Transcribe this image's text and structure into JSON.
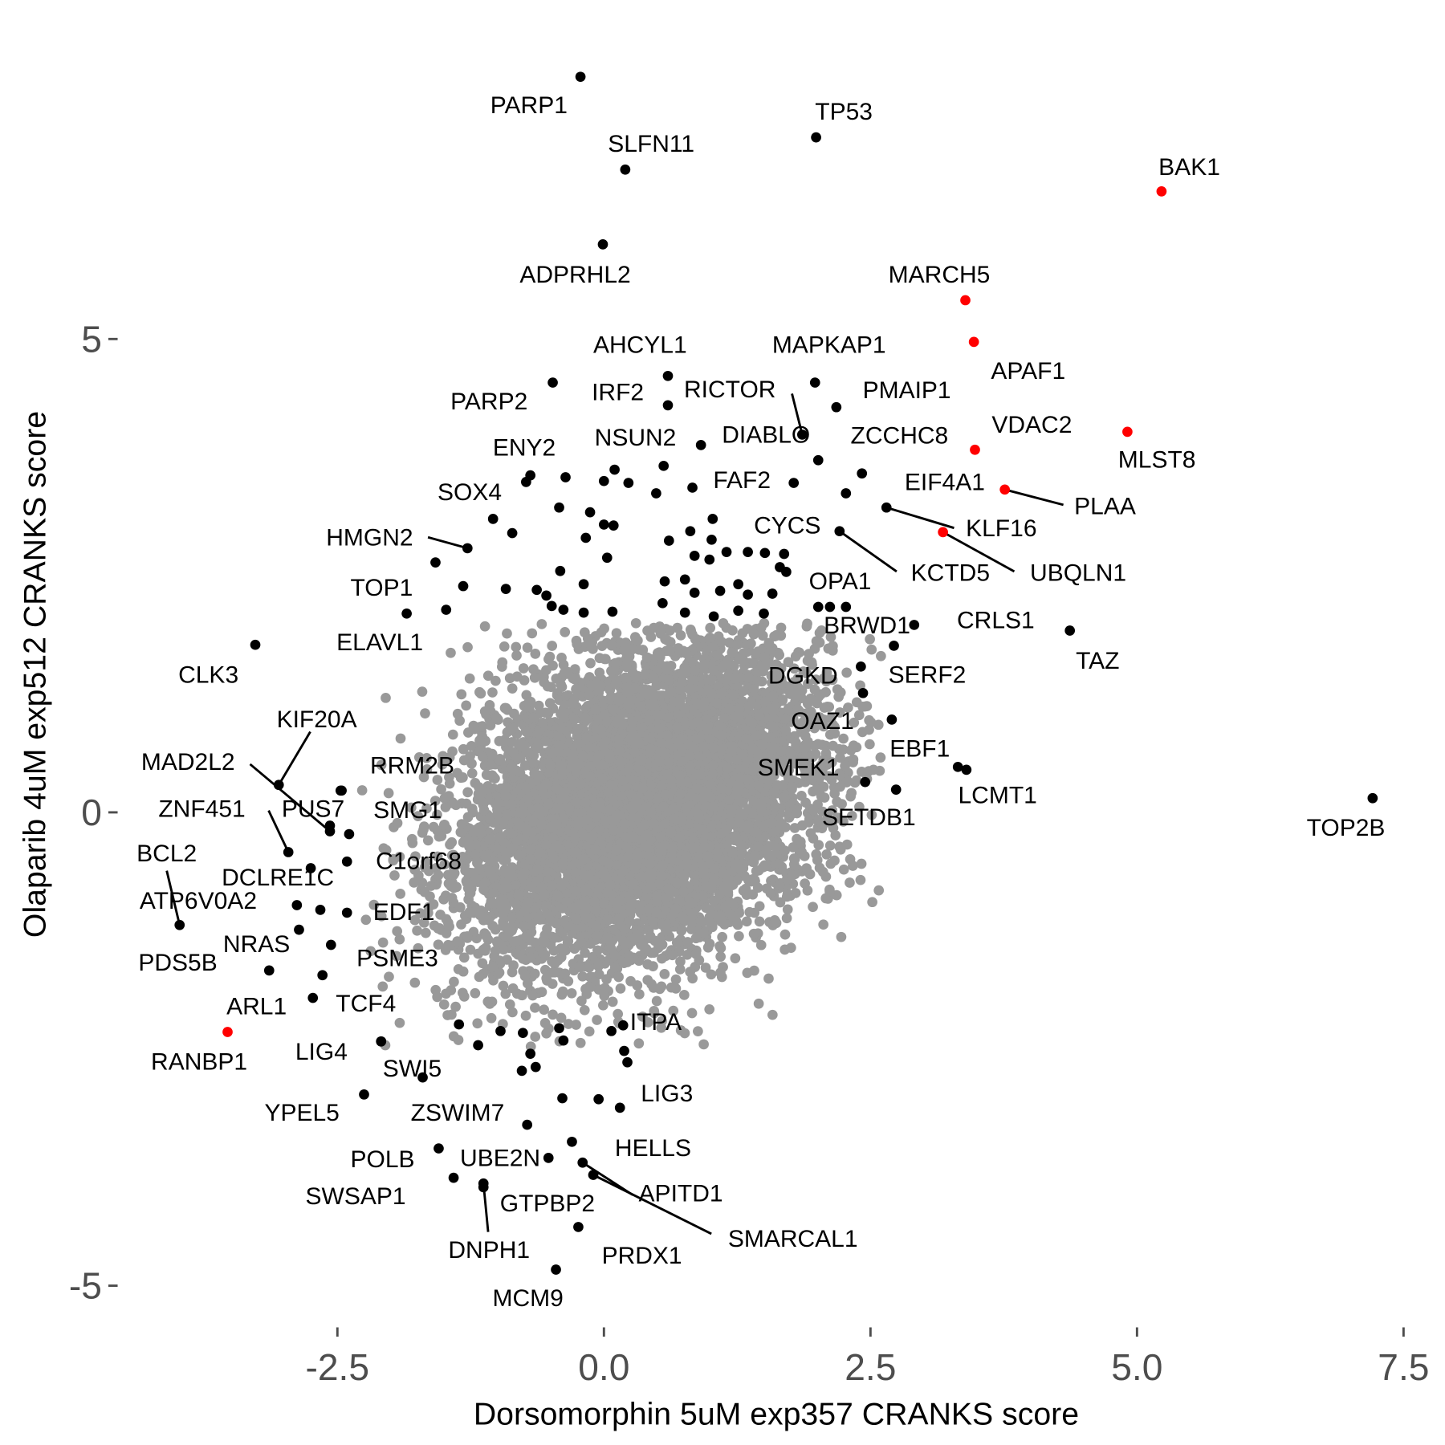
{
  "chart_data": {
    "type": "scatter",
    "title": "",
    "xlabel": "Dorsomorphin 5uM exp357 CRANKS score",
    "ylabel": "Olaparib 4uM exp512 CRANKS score",
    "xlim": [
      -3.6,
      7.6
    ],
    "ylim": [
      -5.3,
      7.8
    ],
    "xticks": [
      -2.5,
      0.0,
      2.5,
      5.0,
      7.5
    ],
    "xtick_labels": [
      "-2.5",
      "0.0",
      "2.5",
      "5.0",
      "7.5"
    ],
    "yticks": [
      -5,
      0,
      5
    ],
    "ytick_labels": [
      "-5",
      "0",
      "5"
    ],
    "grid": false,
    "legend": "none",
    "colors": {
      "background_points": "#999999",
      "hit_points": "#000000",
      "highlight_points": "#ff0000"
    },
    "background_cloud": {
      "note": "dense cloud of non-significant genes",
      "center": [
        0.33,
        0.07
      ],
      "sd": [
        0.85,
        0.85
      ]
    },
    "labeled_points": [
      {
        "gene": "PARP1",
        "x": -0.22,
        "y": 7.77
      },
      {
        "gene": "TP53",
        "x": 1.99,
        "y": 7.13
      },
      {
        "gene": "SLFN11",
        "x": 0.2,
        "y": 6.79
      },
      {
        "gene": "ADPRHL2",
        "x": -0.01,
        "y": 6.0
      },
      {
        "gene": "BAK1",
        "x": 5.23,
        "y": 6.56,
        "highlight": true
      },
      {
        "gene": "MARCH5",
        "x": 3.39,
        "y": 5.41,
        "highlight": true
      },
      {
        "gene": "APAF1",
        "x": 3.47,
        "y": 4.97,
        "highlight": true
      },
      {
        "gene": "MLST8",
        "x": 4.91,
        "y": 4.02,
        "highlight": true
      },
      {
        "gene": "VDAC2",
        "x": 3.48,
        "y": 3.83,
        "highlight": true
      },
      {
        "gene": "PLAA",
        "x": 3.76,
        "y": 3.41,
        "highlight": true
      },
      {
        "gene": "UBQLN1",
        "x": 3.18,
        "y": 2.96,
        "highlight": true
      },
      {
        "gene": "RANBP1",
        "x": -3.53,
        "y": -2.32,
        "highlight": true
      },
      {
        "gene": "AHCYL1",
        "x": 0.6,
        "y": 4.61
      },
      {
        "gene": "PARP2",
        "x": -0.48,
        "y": 4.54
      },
      {
        "gene": "MAPKAP1",
        "x": 1.98,
        "y": 4.54
      },
      {
        "gene": "IRF2",
        "x": 0.6,
        "y": 4.3
      },
      {
        "gene": "PMAIP1",
        "x": 2.18,
        "y": 4.28
      },
      {
        "gene": "RICTOR",
        "x": 1.86,
        "y": 3.99
      },
      {
        "gene": "DIABLO",
        "x": 2.01,
        "y": 3.72
      },
      {
        "gene": "ZCCHC8",
        "x": 2.42,
        "y": 3.58
      },
      {
        "gene": "NSUN2",
        "x": 0.91,
        "y": 3.88
      },
      {
        "gene": "ENY2",
        "x": -0.69,
        "y": 3.56
      },
      {
        "gene": "FAF2",
        "x": 1.78,
        "y": 3.48
      },
      {
        "gene": "SOX4",
        "x": -1.04,
        "y": 3.1
      },
      {
        "gene": "EIF4A1",
        "x": 2.27,
        "y": 3.37
      },
      {
        "gene": "KLF16",
        "x": 2.65,
        "y": 3.22
      },
      {
        "gene": "KCTD5",
        "x": 2.21,
        "y": 2.97
      },
      {
        "gene": "CYCS",
        "x": 1.69,
        "y": 2.73
      },
      {
        "gene": "HMGN2",
        "x": -1.28,
        "y": 2.79
      },
      {
        "gene": "TOP1",
        "x": -1.58,
        "y": 2.64
      },
      {
        "gene": "OPA1",
        "x": 2.01,
        "y": 2.17
      },
      {
        "gene": "ELAVL1",
        "x": -1.85,
        "y": 2.1
      },
      {
        "gene": "BRWD1",
        "x": 2.91,
        "y": 1.98
      },
      {
        "gene": "TAZ",
        "x": 4.37,
        "y": 1.92
      },
      {
        "gene": "CLK3",
        "x": -3.27,
        "y": 1.77
      },
      {
        "gene": "DGKD",
        "x": 2.72,
        "y": 1.76
      },
      {
        "gene": "SERF2",
        "x": 2.41,
        "y": 1.54
      },
      {
        "gene": "CRLS1",
        "x": 2.43,
        "y": 1.26
      },
      {
        "gene": "OAZ1",
        "x": 2.7,
        "y": 0.98
      },
      {
        "gene": "EBF1",
        "x": 3.32,
        "y": 0.48
      },
      {
        "gene": "LCMT1",
        "x": 3.4,
        "y": 0.45
      },
      {
        "gene": "SMEK1",
        "x": 2.45,
        "y": 0.32
      },
      {
        "gene": "SETDB1",
        "x": 2.74,
        "y": 0.24
      },
      {
        "gene": "TOP2B",
        "x": 7.21,
        "y": 0.15
      },
      {
        "gene": "KIF20A",
        "x": -3.05,
        "y": 0.29
      },
      {
        "gene": "RRM2B",
        "x": -2.46,
        "y": 0.23
      },
      {
        "gene": "MAD2L2",
        "x": -2.57,
        "y": -0.2
      },
      {
        "gene": "PUS7",
        "x": -2.57,
        "y": -0.14
      },
      {
        "gene": "SMG1",
        "x": -2.39,
        "y": -0.23
      },
      {
        "gene": "ZNF451",
        "x": -2.96,
        "y": -0.42
      },
      {
        "gene": "C1orf68",
        "x": -2.41,
        "y": -0.52
      },
      {
        "gene": "ATP6V0A2",
        "x": -2.75,
        "y": -0.59
      },
      {
        "gene": "BCL2",
        "x": -3.98,
        "y": -1.19
      },
      {
        "gene": "DCLRE1C",
        "x": -2.66,
        "y": -1.03
      },
      {
        "gene": "EDF1",
        "x": -2.41,
        "y": -1.06
      },
      {
        "gene": "NRAS",
        "x": -2.86,
        "y": -1.24
      },
      {
        "gene": "PSME3",
        "x": -2.56,
        "y": -1.4
      },
      {
        "gene": "PDS5B",
        "x": -3.14,
        "y": -1.67
      },
      {
        "gene": "TCF4",
        "x": -2.64,
        "y": -1.72
      },
      {
        "gene": "ARL1",
        "x": -2.73,
        "y": -1.96
      },
      {
        "gene": "LIG4",
        "x": -2.09,
        "y": -2.42
      },
      {
        "gene": "SWI5",
        "x": -1.7,
        "y": -2.8
      },
      {
        "gene": "ITPA",
        "x": 0.18,
        "y": -2.25
      },
      {
        "gene": "YPEL5",
        "x": -2.25,
        "y": -2.98
      },
      {
        "gene": "LIG3",
        "x": 0.15,
        "y": -3.12
      },
      {
        "gene": "ZSWIM7",
        "x": -0.72,
        "y": -3.3
      },
      {
        "gene": "HELLS",
        "x": -0.3,
        "y": -3.48
      },
      {
        "gene": "POLB",
        "x": -1.55,
        "y": -3.55
      },
      {
        "gene": "UBE2N",
        "x": -0.52,
        "y": -3.65
      },
      {
        "gene": "APITD1",
        "x": -0.2,
        "y": -3.7
      },
      {
        "gene": "SMARCAL1",
        "x": -0.1,
        "y": -3.83
      },
      {
        "gene": "SWSAP1",
        "x": -1.41,
        "y": -3.86
      },
      {
        "gene": "GTPBP2",
        "x": -1.13,
        "y": -3.96
      },
      {
        "gene": "DNPH1",
        "x": -1.13,
        "y": -3.92
      },
      {
        "gene": "PRDX1",
        "x": -0.24,
        "y": -4.38
      },
      {
        "gene": "MCM9",
        "x": -0.45,
        "y": -4.83
      }
    ],
    "unlabeled_hits": [
      [
        -0.36,
        3.54
      ],
      [
        -0.42,
        3.22
      ],
      [
        -0.13,
        3.17
      ],
      [
        0.0,
        3.5
      ],
      [
        0.23,
        3.48
      ],
      [
        0.1,
        3.62
      ],
      [
        0.56,
        3.66
      ],
      [
        0.49,
        3.37
      ],
      [
        0.83,
        3.43
      ],
      [
        1.02,
        3.1
      ],
      [
        0.81,
        2.97
      ],
      [
        0.61,
        2.87
      ],
      [
        1.01,
        2.88
      ],
      [
        0.85,
        2.71
      ],
      [
        0.99,
        2.67
      ],
      [
        1.15,
        2.75
      ],
      [
        1.35,
        2.75
      ],
      [
        1.51,
        2.74
      ],
      [
        1.65,
        2.59
      ],
      [
        1.71,
        2.54
      ],
      [
        -0.17,
        2.9
      ],
      [
        0.03,
        2.69
      ],
      [
        0.0,
        3.04
      ],
      [
        0.09,
        3.03
      ],
      [
        -0.41,
        2.55
      ],
      [
        -0.19,
        2.41
      ],
      [
        -0.63,
        2.35
      ],
      [
        -0.54,
        2.29
      ],
      [
        -0.49,
        2.18
      ],
      [
        -0.38,
        2.14
      ],
      [
        -0.19,
        2.11
      ],
      [
        0.08,
        2.12
      ],
      [
        0.57,
        2.44
      ],
      [
        0.76,
        2.46
      ],
      [
        0.85,
        2.32
      ],
      [
        1.09,
        2.34
      ],
      [
        1.26,
        2.41
      ],
      [
        1.35,
        2.3
      ],
      [
        1.58,
        2.31
      ],
      [
        0.55,
        2.21
      ],
      [
        0.76,
        2.11
      ],
      [
        1.03,
        2.07
      ],
      [
        1.26,
        2.13
      ],
      [
        1.5,
        2.1
      ],
      [
        -1.32,
        2.39
      ],
      [
        -1.48,
        2.14
      ],
      [
        -0.92,
        2.36
      ],
      [
        -0.86,
        2.95
      ],
      [
        -0.73,
        3.49
      ],
      [
        -2.47,
        0.23
      ],
      [
        2.12,
        2.17
      ],
      [
        2.27,
        2.17
      ],
      [
        -1.36,
        -2.24
      ],
      [
        -1.18,
        -2.46
      ],
      [
        -0.97,
        -2.31
      ],
      [
        -0.76,
        -2.33
      ],
      [
        -0.69,
        -2.55
      ],
      [
        -0.77,
        -2.73
      ],
      [
        -0.64,
        -2.69
      ],
      [
        -0.42,
        -2.28
      ],
      [
        -0.38,
        -2.41
      ],
      [
        0.07,
        -2.31
      ],
      [
        -0.05,
        -3.03
      ],
      [
        -0.39,
        -3.02
      ],
      [
        0.19,
        -2.52
      ],
      [
        0.22,
        -2.64
      ],
      [
        -2.88,
        -0.98
      ],
      [
        -2.09,
        -2.42
      ]
    ]
  }
}
